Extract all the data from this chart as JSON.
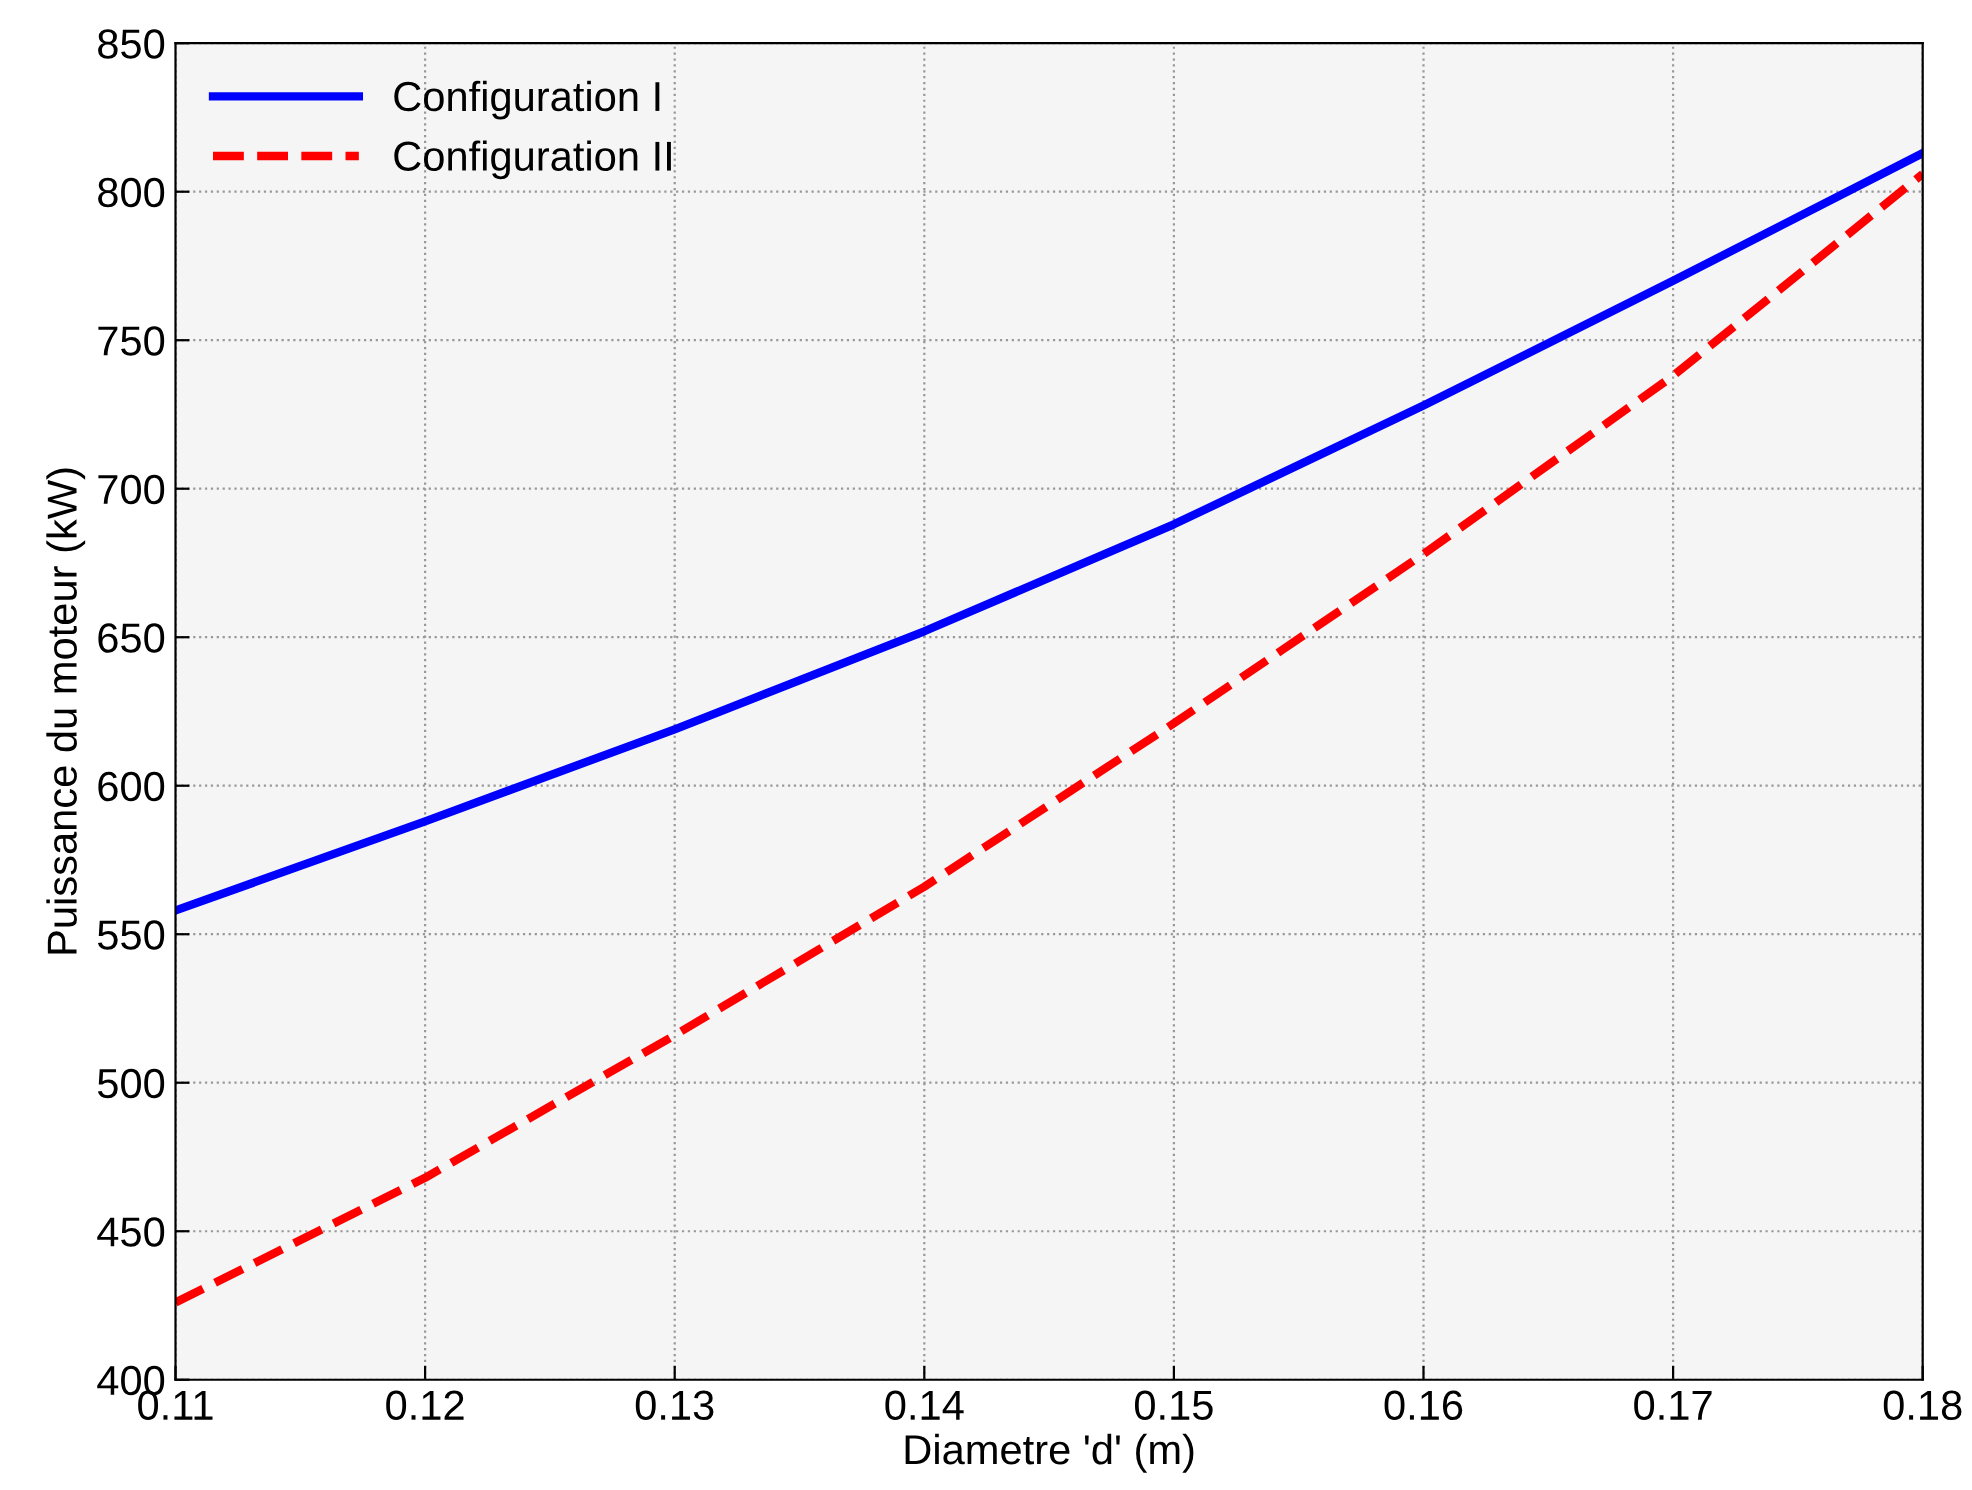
{
  "chart_data": {
    "type": "line",
    "xlabel": "Diametre 'd' (m)",
    "ylabel": "Puissance du moteur (kW)",
    "x": [
      0.11,
      0.12,
      0.13,
      0.14,
      0.15,
      0.16,
      0.17,
      0.18
    ],
    "series": [
      {
        "name": "Configuration I",
        "color": "#0000ff",
        "line_style": "solid",
        "values": [
          558,
          588,
          619,
          652,
          688,
          728,
          770,
          813
        ]
      },
      {
        "name": "Configuration II",
        "color": "#ff0000",
        "line_style": "dashed",
        "values": [
          426,
          468,
          516,
          566,
          621,
          678,
          738,
          806
        ]
      }
    ],
    "xlim": [
      0.11,
      0.18
    ],
    "xticks": [
      0.11,
      0.12,
      0.13,
      0.14,
      0.15,
      0.16,
      0.17,
      0.18
    ],
    "ylim": [
      400,
      850
    ],
    "yticks": [
      400,
      450,
      500,
      550,
      600,
      650,
      700,
      750,
      800,
      850
    ],
    "grid": true,
    "legend": "top left",
    "marker": "none"
  }
}
